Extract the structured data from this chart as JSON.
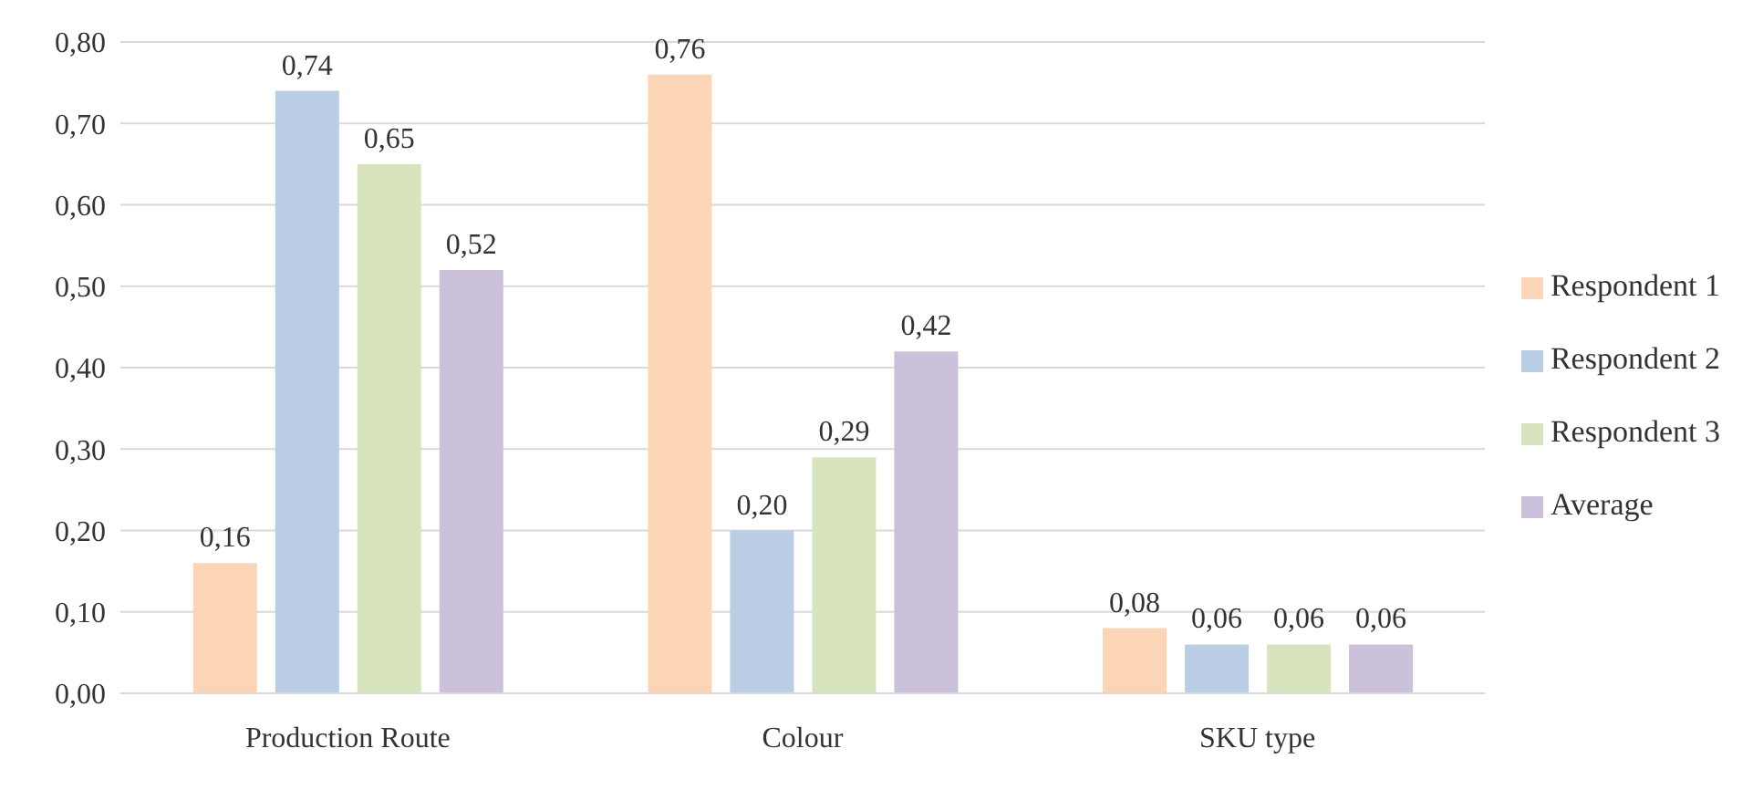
{
  "chart_data": {
    "type": "bar",
    "categories": [
      "Production Route",
      "Colour",
      "SKU type"
    ],
    "series": [
      {
        "name": "Respondent 1",
        "color": "#fbd5b5",
        "values": [
          0.16,
          0.76,
          0.08
        ],
        "value_labels": [
          "0,16",
          "0,76",
          "0,08"
        ]
      },
      {
        "name": "Respondent 2",
        "color": "#b9cde5",
        "values": [
          0.74,
          0.2,
          0.06
        ],
        "value_labels": [
          "0,74",
          "0,20",
          "0,06"
        ]
      },
      {
        "name": "Respondent 3",
        "color": "#d7e4bd",
        "values": [
          0.65,
          0.29,
          0.06
        ],
        "value_labels": [
          "0,65",
          "0,29",
          "0,06"
        ]
      },
      {
        "name": "Average",
        "color": "#ccc1da",
        "values": [
          0.52,
          0.42,
          0.06
        ],
        "value_labels": [
          "0,52",
          "0,42",
          "0,06"
        ]
      }
    ],
    "ylim": [
      0,
      0.8
    ],
    "yticks": [
      {
        "value": 0,
        "label": "0,00"
      },
      {
        "value": 0.1,
        "label": "0,10"
      },
      {
        "value": 0.2,
        "label": "0,20"
      },
      {
        "value": 0.3,
        "label": "0,30"
      },
      {
        "value": 0.4,
        "label": "0,40"
      },
      {
        "value": 0.5,
        "label": "0,50"
      },
      {
        "value": 0.6,
        "label": "0,60"
      },
      {
        "value": 0.7,
        "label": "0,70"
      },
      {
        "value": 0.8,
        "label": "0,80"
      }
    ],
    "grid": "y",
    "legend": "right"
  }
}
